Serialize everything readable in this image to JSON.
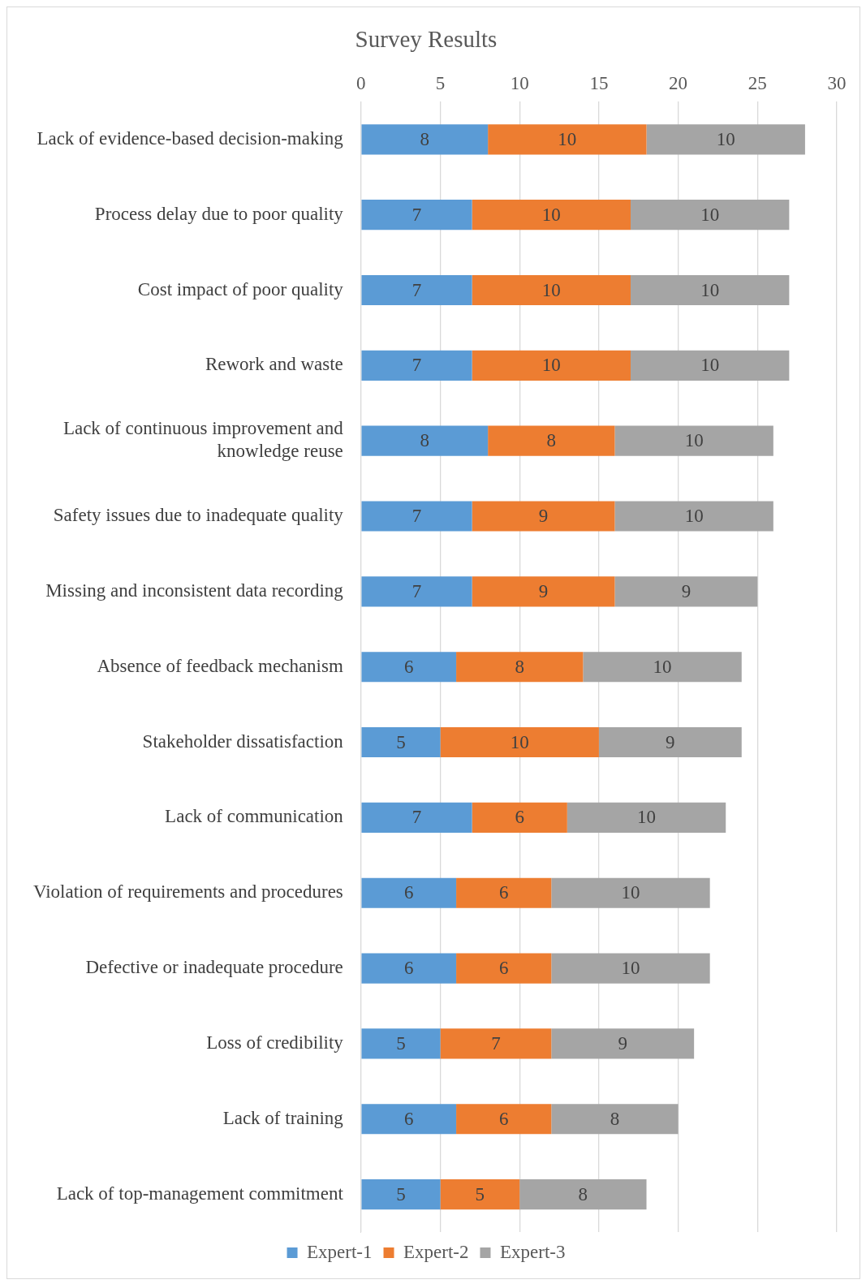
{
  "chart_data": {
    "type": "bar",
    "orientation": "horizontal",
    "stacked": true,
    "title": "Survey Results",
    "categories": [
      "Lack of evidence-based decision-making",
      "Process delay due to poor quality",
      "Cost impact of poor quality",
      "Rework and waste",
      "Lack of continuous improvement and knowledge reuse",
      "Safety issues due to inadequate quality",
      "Missing and inconsistent data recording",
      "Absence of feedback mechanism",
      "Stakeholder dissatisfaction",
      "Lack of communication",
      "Violation of requirements and procedures",
      "Defective or inadequate procedure",
      "Loss of credibility",
      "Lack of training",
      "Lack of top-management commitment"
    ],
    "series": [
      {
        "name": "Expert-1",
        "color": "#5b9bd5",
        "values": [
          8,
          7,
          7,
          7,
          8,
          7,
          7,
          6,
          5,
          7,
          6,
          6,
          5,
          6,
          5
        ]
      },
      {
        "name": "Expert-2",
        "color": "#ed7d31",
        "values": [
          10,
          10,
          10,
          10,
          8,
          9,
          9,
          8,
          10,
          6,
          6,
          6,
          7,
          6,
          5
        ]
      },
      {
        "name": "Expert-3",
        "color": "#a5a5a5",
        "values": [
          10,
          10,
          10,
          10,
          10,
          10,
          9,
          10,
          9,
          10,
          10,
          10,
          9,
          8,
          8
        ]
      }
    ],
    "xlim": [
      0,
      30
    ],
    "xticks": [
      0,
      5,
      10,
      15,
      20,
      25,
      30
    ],
    "grid": "x",
    "legend": "bottom",
    "data_labels": true
  }
}
